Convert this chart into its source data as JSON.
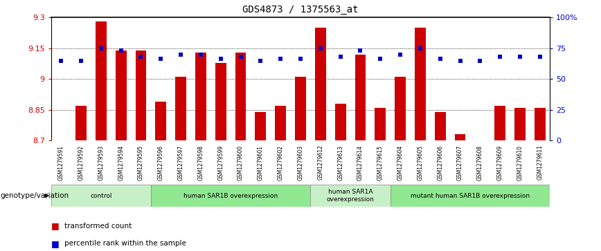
{
  "title": "GDS4873 / 1375563_at",
  "samples": [
    "GSM1279591",
    "GSM1279592",
    "GSM1279593",
    "GSM1279594",
    "GSM1279595",
    "GSM1279596",
    "GSM1279597",
    "GSM1279598",
    "GSM1279599",
    "GSM1279600",
    "GSM1279601",
    "GSM1279602",
    "GSM1279603",
    "GSM1279612",
    "GSM1279613",
    "GSM1279614",
    "GSM1279615",
    "GSM1279604",
    "GSM1279605",
    "GSM1279606",
    "GSM1279607",
    "GSM1279608",
    "GSM1279609",
    "GSM1279610",
    "GSM1279611"
  ],
  "bar_values": [
    8.7,
    8.87,
    9.28,
    9.14,
    9.14,
    8.89,
    9.01,
    9.13,
    9.08,
    9.13,
    8.84,
    8.87,
    9.01,
    9.25,
    8.88,
    9.12,
    8.86,
    9.01,
    9.25,
    8.84,
    8.73,
    8.7,
    8.87,
    8.86,
    8.86
  ],
  "dot_values": [
    9.09,
    9.09,
    9.15,
    9.14,
    9.11,
    9.1,
    9.12,
    9.12,
    9.1,
    9.11,
    9.09,
    9.1,
    9.1,
    9.15,
    9.11,
    9.14,
    9.1,
    9.12,
    9.15,
    9.1,
    9.09,
    9.09,
    9.11,
    9.11,
    9.11
  ],
  "groups": [
    {
      "label": "control",
      "start": 0,
      "end": 5,
      "color": "#c8f0c8"
    },
    {
      "label": "human SAR1B overexpression",
      "start": 5,
      "end": 13,
      "color": "#90e890"
    },
    {
      "label": "human SAR1A\noverexpression",
      "start": 13,
      "end": 17,
      "color": "#c8f0c8"
    },
    {
      "label": "mutant human SAR1B overexpression",
      "start": 17,
      "end": 25,
      "color": "#90e890"
    }
  ],
  "ylim_left": [
    8.7,
    9.3
  ],
  "ylim_right": [
    0,
    100
  ],
  "yticks_left": [
    8.7,
    8.85,
    9.0,
    9.15,
    9.3
  ],
  "yticks_right": [
    0,
    25,
    50,
    75,
    100
  ],
  "ytick_labels_left": [
    "8.7",
    "8.85",
    "9",
    "9.15",
    "9.3"
  ],
  "ytick_labels_right": [
    "0",
    "25",
    "50",
    "75",
    "100%"
  ],
  "bar_color": "#cc0000",
  "dot_color": "#0000cc",
  "genotype_label": "genotype/variation",
  "legend_items": [
    {
      "color": "#cc0000",
      "label": "transformed count"
    },
    {
      "color": "#0000cc",
      "label": "percentile rank within the sample"
    }
  ]
}
